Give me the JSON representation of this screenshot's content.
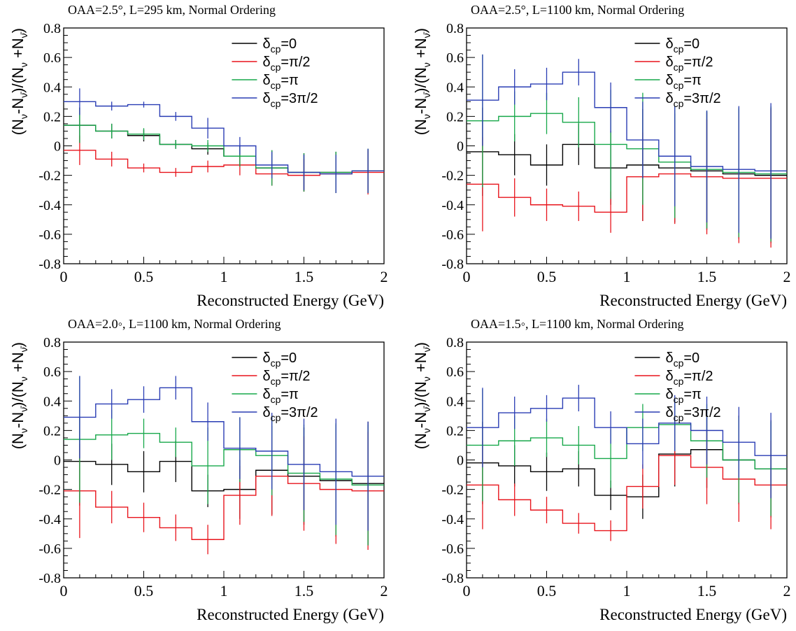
{
  "chart_data": [
    {
      "type": "line",
      "title": "OAA=2.5°, L=295 km, Normal Ordering",
      "xlabel": "Reconstructed Energy (GeV)",
      "ylabel": "(Nν-Nν̄)/(Nν+Nν̄)",
      "xlim": [
        0,
        2
      ],
      "ylim": [
        -0.8,
        0.8
      ],
      "x_ticks": [
        "0",
        "0.5",
        "1",
        "1.5",
        "2"
      ],
      "y_ticks": [
        "-0.8",
        "-0.6",
        "-0.4",
        "-0.2",
        "0",
        "0.2",
        "0.4",
        "0.6",
        "0.8"
      ],
      "bin_edges": [
        0,
        0.2,
        0.4,
        0.6,
        0.8,
        1.0,
        1.2,
        1.4,
        1.6,
        1.8,
        2.0
      ],
      "legend_position": "top-right",
      "series": [
        {
          "name": "δcp=0",
          "color": "#000000",
          "values": [
            0.14,
            0.1,
            0.07,
            0.01,
            -0.02,
            -0.07,
            -0.15,
            -0.18,
            -0.18,
            -0.17
          ],
          "errors": [
            0.12,
            0.05,
            0.04,
            0.03,
            0.04,
            0.07,
            0.12,
            0.13,
            0.14,
            0.15
          ]
        },
        {
          "name": "δcp=π/2",
          "color": "#e8141c",
          "values": [
            -0.03,
            -0.09,
            -0.15,
            -0.18,
            -0.14,
            -0.13,
            -0.19,
            -0.2,
            -0.19,
            -0.18
          ],
          "errors": [
            0.1,
            0.05,
            0.03,
            0.03,
            0.04,
            0.07,
            0.08,
            0.11,
            0.13,
            0.15
          ]
        },
        {
          "name": "δcp=π",
          "color": "#17a84a",
          "values": [
            0.14,
            0.1,
            0.08,
            0.01,
            0.0,
            -0.07,
            -0.15,
            -0.18,
            -0.18,
            -0.17
          ],
          "errors": [
            0.12,
            0.05,
            0.04,
            0.03,
            0.04,
            0.07,
            0.12,
            0.13,
            0.14,
            0.15
          ]
        },
        {
          "name": "δcp=3π/2",
          "color": "#2a3db4",
          "values": [
            0.3,
            0.27,
            0.28,
            0.2,
            0.12,
            0.0,
            -0.13,
            -0.18,
            -0.19,
            -0.17
          ],
          "errors": [
            0.09,
            0.03,
            0.02,
            0.03,
            0.07,
            0.06,
            0.09,
            0.12,
            0.13,
            0.15
          ]
        }
      ]
    },
    {
      "type": "line",
      "title": "OAA=2.5°, L=1100 km, Normal Ordering",
      "xlabel": "Reconstructed Energy (GeV)",
      "ylabel": "(Nν-Nν̄)/(Nν+Nν̄)",
      "xlim": [
        0,
        2
      ],
      "ylim": [
        -0.8,
        0.8
      ],
      "x_ticks": [
        "0",
        "0.5",
        "1",
        "1.5",
        "2"
      ],
      "y_ticks": [
        "-0.8",
        "-0.6",
        "-0.4",
        "-0.2",
        "0",
        "0.2",
        "0.4",
        "0.6",
        "0.8"
      ],
      "bin_edges": [
        0,
        0.2,
        0.4,
        0.6,
        0.8,
        1.0,
        1.2,
        1.4,
        1.6,
        1.8,
        2.0
      ],
      "legend_position": "top-right",
      "series": [
        {
          "name": "δcp=0",
          "color": "#000000",
          "values": [
            -0.04,
            -0.06,
            -0.13,
            0.01,
            -0.15,
            -0.13,
            -0.15,
            -0.17,
            -0.19,
            -0.2
          ],
          "errors": [
            0.3,
            0.14,
            0.14,
            0.14,
            0.25,
            0.38,
            0.37,
            0.4,
            0.44,
            0.46
          ]
        },
        {
          "name": "δcp=π/2",
          "color": "#e8141c",
          "values": [
            -0.26,
            -0.35,
            -0.4,
            -0.41,
            -0.45,
            -0.21,
            -0.19,
            -0.21,
            -0.22,
            -0.22
          ],
          "errors": [
            0.32,
            0.13,
            0.11,
            0.1,
            0.14,
            0.3,
            0.34,
            0.39,
            0.44,
            0.47
          ]
        },
        {
          "name": "δcp=π",
          "color": "#17a84a",
          "values": [
            0.17,
            0.2,
            0.22,
            0.16,
            0.01,
            -0.02,
            -0.11,
            -0.16,
            -0.18,
            -0.19
          ],
          "errors": [
            0.45,
            0.17,
            0.14,
            0.17,
            0.37,
            0.38,
            0.38,
            0.4,
            0.44,
            0.46
          ]
        },
        {
          "name": "δcp=3π/2",
          "color": "#2a3db4",
          "values": [
            0.31,
            0.4,
            0.42,
            0.5,
            0.26,
            0.04,
            -0.07,
            -0.14,
            -0.16,
            -0.17
          ],
          "errors": [
            0.31,
            0.12,
            0.11,
            0.09,
            0.17,
            0.26,
            0.34,
            0.38,
            0.43,
            0.46
          ]
        }
      ]
    },
    {
      "type": "line",
      "title": "OAA=2.0◦, L=1100 km, Normal Ordering",
      "xlabel": "Reconstructed Energy (GeV)",
      "ylabel": "(Nν-Nν̄)/(Nν+Nν̄)",
      "xlim": [
        0,
        2
      ],
      "ylim": [
        -0.8,
        0.8
      ],
      "x_ticks": [
        "0",
        "0.5",
        "1",
        "1.5",
        "2"
      ],
      "y_ticks": [
        "-0.8",
        "-0.6",
        "-0.4",
        "-0.2",
        "0",
        "0.2",
        "0.4",
        "0.6",
        "0.8"
      ],
      "bin_edges": [
        0,
        0.2,
        0.4,
        0.6,
        0.8,
        1.0,
        1.2,
        1.4,
        1.6,
        1.8,
        2.0
      ],
      "legend_position": "top-right",
      "series": [
        {
          "name": "δcp=0",
          "color": "#000000",
          "values": [
            -0.01,
            -0.03,
            -0.08,
            -0.01,
            -0.21,
            -0.2,
            -0.07,
            -0.11,
            -0.14,
            -0.16
          ],
          "errors": [
            0.3,
            0.14,
            0.14,
            0.14,
            0.11,
            0.2,
            0.3,
            0.33,
            0.38,
            0.42
          ]
        },
        {
          "name": "δcp=π/2",
          "color": "#e8141c",
          "values": [
            -0.21,
            -0.32,
            -0.39,
            -0.46,
            -0.54,
            -0.24,
            -0.11,
            -0.16,
            -0.2,
            -0.21
          ],
          "errors": [
            0.32,
            0.11,
            0.1,
            0.09,
            0.1,
            0.2,
            0.27,
            0.32,
            0.37,
            0.4
          ]
        },
        {
          "name": "δcp=π",
          "color": "#17a84a",
          "values": [
            0.14,
            0.17,
            0.18,
            0.12,
            -0.04,
            0.07,
            0.03,
            -0.09,
            -0.13,
            -0.17
          ],
          "errors": [
            0.43,
            0.17,
            0.1,
            0.1,
            0.26,
            0.22,
            0.27,
            0.33,
            0.38,
            0.41
          ]
        },
        {
          "name": "δcp=3π/2",
          "color": "#2a3db4",
          "values": [
            0.29,
            0.38,
            0.41,
            0.49,
            0.26,
            0.08,
            0.06,
            -0.03,
            -0.08,
            -0.11
          ],
          "errors": [
            0.28,
            0.1,
            0.09,
            0.08,
            0.13,
            0.21,
            0.26,
            0.31,
            0.36,
            0.37
          ]
        }
      ]
    },
    {
      "type": "line",
      "title": "OAA=1.5◦, L=1100 km, Normal Ordering",
      "xlabel": "Reconstructed Energy (GeV)",
      "ylabel": "(Nν-Nν̄)/(Nν+Nν̄)",
      "xlim": [
        0,
        2
      ],
      "ylim": [
        -0.8,
        0.8
      ],
      "x_ticks": [
        "0",
        "0.5",
        "1",
        "1.5",
        "2"
      ],
      "y_ticks": [
        "-0.8",
        "-0.6",
        "-0.4",
        "-0.2",
        "0",
        "0.2",
        "0.4",
        "0.6",
        "0.8"
      ],
      "bin_edges": [
        0,
        0.2,
        0.4,
        0.6,
        0.8,
        1.0,
        1.2,
        1.4,
        1.6,
        1.8,
        2.0
      ],
      "legend_position": "top-right",
      "series": [
        {
          "name": "δcp=0",
          "color": "#000000",
          "values": [
            -0.02,
            -0.04,
            -0.08,
            -0.06,
            -0.24,
            -0.25,
            0.04,
            0.07,
            0.0,
            -0.06
          ],
          "errors": [
            0.28,
            0.14,
            0.13,
            0.12,
            0.1,
            0.15,
            0.22,
            0.26,
            0.3,
            0.33
          ]
        },
        {
          "name": "δcp=π/2",
          "color": "#e8141c",
          "values": [
            -0.17,
            -0.27,
            -0.34,
            -0.43,
            -0.48,
            -0.18,
            0.03,
            -0.05,
            -0.13,
            -0.17
          ],
          "errors": [
            0.3,
            0.11,
            0.09,
            0.07,
            0.07,
            0.15,
            0.2,
            0.25,
            0.29,
            0.3
          ]
        },
        {
          "name": "δcp=π",
          "color": "#17a84a",
          "values": [
            0.1,
            0.13,
            0.15,
            0.1,
            0.01,
            0.22,
            0.24,
            0.13,
            0.0,
            -0.06
          ],
          "errors": [
            0.38,
            0.17,
            0.13,
            0.13,
            0.2,
            0.16,
            0.18,
            0.25,
            0.29,
            0.32
          ]
        },
        {
          "name": "δcp=3π/2",
          "color": "#2a3db4",
          "values": [
            0.22,
            0.32,
            0.35,
            0.42,
            0.22,
            0.11,
            0.25,
            0.2,
            0.12,
            0.03
          ],
          "errors": [
            0.27,
            0.11,
            0.09,
            0.09,
            0.11,
            0.17,
            0.19,
            0.23,
            0.24,
            0.29
          ]
        }
      ]
    }
  ]
}
